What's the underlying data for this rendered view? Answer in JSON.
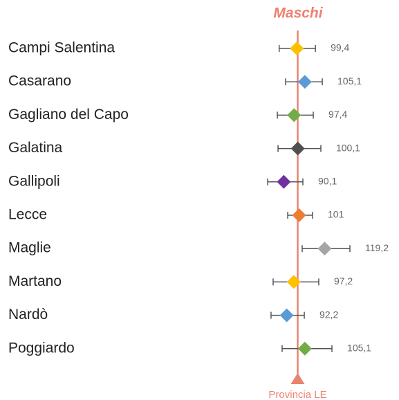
{
  "chart_data": {
    "type": "forest",
    "title": "Maschi",
    "categories": [
      "Campi Salentina",
      "Casarano",
      "Gagliano del Capo",
      "Galatina",
      "Gallipoli",
      "Lecce",
      "Maglie",
      "Martano",
      "Nardò",
      "Poggiardo"
    ],
    "values": [
      99.4,
      105.1,
      97.4,
      100.1,
      90.1,
      101,
      119.2,
      97.2,
      92.2,
      105.1
    ],
    "value_labels": [
      "99,4",
      "105,1",
      "97,4",
      "100,1",
      "90,1",
      "101",
      "119,2",
      "97,2",
      "92,2",
      "105,1"
    ],
    "lower": [
      86.8,
      91.4,
      85.5,
      86.0,
      78.6,
      92.9,
      103.2,
      82.5,
      81.0,
      88.9
    ],
    "upper": [
      112.6,
      117.5,
      111.1,
      116.5,
      103.7,
      110.6,
      137.2,
      115.0,
      104.7,
      124.4
    ],
    "colors": [
      "#ffc000",
      "#5b9bd5",
      "#70ad47",
      "#505050",
      "#7030a0",
      "#ed7d31",
      "#a5a5a5",
      "#ffc000",
      "#5b9bd5",
      "#70ad47"
    ],
    "reference": {
      "value": 100,
      "label": "Provincia LE"
    },
    "reference_color": "#e8836e",
    "xlim": [
      60,
      140
    ]
  }
}
